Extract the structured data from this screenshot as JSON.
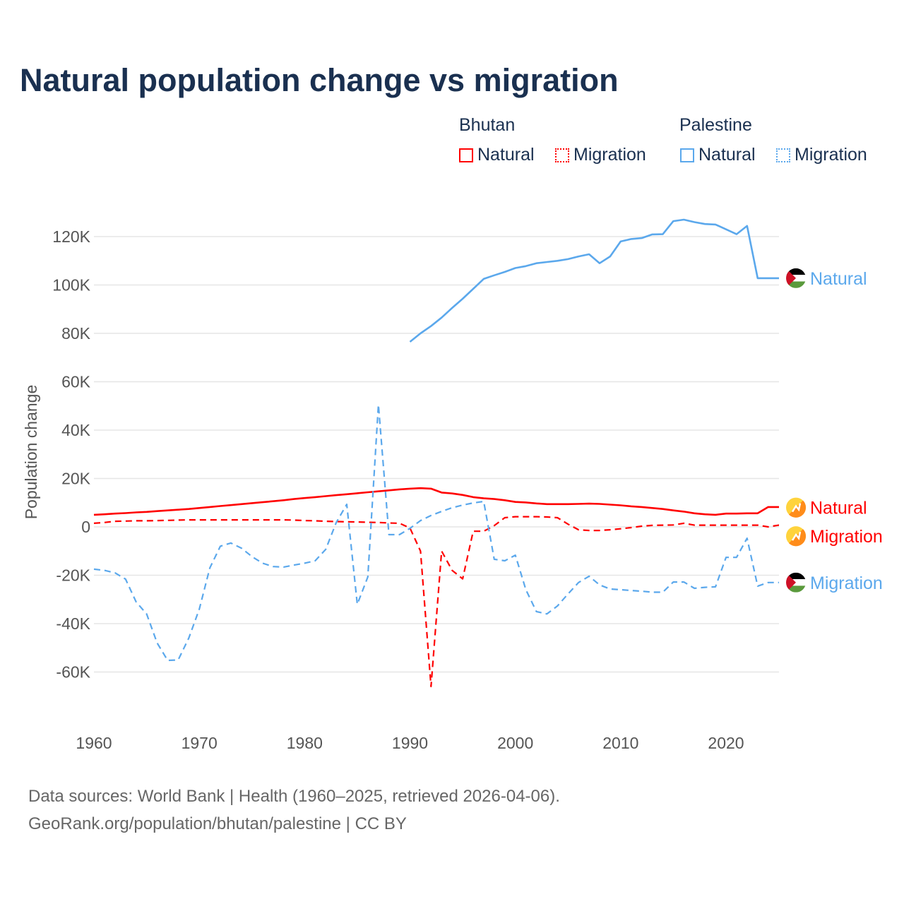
{
  "title": "Natural population change vs migration",
  "legend": {
    "groups": [
      {
        "country": "Bhutan",
        "items": [
          "Natural",
          "Migration"
        ],
        "color": "#ff0000"
      },
      {
        "country": "Palestine",
        "items": [
          "Natural",
          "Migration"
        ],
        "color": "#5ba8ec"
      }
    ]
  },
  "source": {
    "line1": "Data sources: World Bank | Health (1960–2025, retrieved 2026-04-06).",
    "line2": "GeoRank.org/population/bhutan/palestine | CC BY"
  },
  "chart_data": {
    "type": "line",
    "title": "Natural population change vs migration",
    "xlabel": "",
    "ylabel": "Population change",
    "xlim": [
      1960,
      2025
    ],
    "ylim": [
      -70,
      130
    ],
    "x_ticks": [
      "1960",
      "1970",
      "1980",
      "1990",
      "2000",
      "2010",
      "2020"
    ],
    "y_ticks": [
      {
        "v": 120,
        "label": "120K"
      },
      {
        "v": 100,
        "label": "100K"
      },
      {
        "v": 80,
        "label": "80K"
      },
      {
        "v": 60,
        "label": "60K"
      },
      {
        "v": 40,
        "label": "40K"
      },
      {
        "v": 20,
        "label": "20K"
      },
      {
        "v": 0,
        "label": "0"
      },
      {
        "v": -20,
        "label": "-20K"
      },
      {
        "v": -40,
        "label": "-40K"
      },
      {
        "v": -60,
        "label": "-60K"
      }
    ],
    "grid": true,
    "x_start": 1960,
    "units": "thousands",
    "series": [
      {
        "name": "Bhutan Natural",
        "label": "Natural",
        "color": "#ff0000",
        "dash": false,
        "values": [
          5,
          5.2,
          5.5,
          5.7,
          6,
          6.2,
          6.5,
          6.8,
          7.1,
          7.4,
          7.8,
          8.2,
          8.6,
          9,
          9.4,
          9.8,
          10.2,
          10.6,
          11,
          11.5,
          11.9,
          12.3,
          12.7,
          13.1,
          13.5,
          13.9,
          14.3,
          14.7,
          15.1,
          15.5,
          15.8,
          16,
          15.8,
          14.2,
          13.8,
          13.2,
          12.3,
          11.8,
          11.5,
          11,
          10.3,
          10.1,
          9.7,
          9.4,
          9.4,
          9.4,
          9.5,
          9.6,
          9.5,
          9.2,
          8.9,
          8.5,
          8.2,
          7.8,
          7.4,
          6.8,
          6.3,
          5.6,
          5.2,
          5,
          5.5,
          5.5,
          5.6,
          5.6,
          8.2,
          8.2
        ]
      },
      {
        "name": "Bhutan Migration",
        "label": "Migration",
        "color": "#ff0000",
        "dash": true,
        "values": [
          1.5,
          1.8,
          2.3,
          2.4,
          2.5,
          2.5,
          2.6,
          2.7,
          2.8,
          2.9,
          2.9,
          2.9,
          2.9,
          2.9,
          2.9,
          2.9,
          2.9,
          2.9,
          2.9,
          2.8,
          2.6,
          2.5,
          2.3,
          2.2,
          2.1,
          2,
          1.9,
          1.8,
          1.6,
          1.5,
          -0.5,
          -10,
          -66,
          -10,
          -18,
          -21.5,
          -1.8,
          -1.8,
          0.5,
          3.8,
          4.2,
          4.2,
          4.2,
          4.1,
          3.8,
          1.1,
          -1.2,
          -1.5,
          -1.5,
          -1.2,
          -0.8,
          -0.3,
          0.3,
          0.6,
          0.7,
          0.8,
          1.5,
          0.7,
          0.7,
          0.7,
          0.7,
          0.7,
          0.7,
          0.7,
          0,
          0.7
        ]
      },
      {
        "name": "Palestine Natural",
        "label": "Natural",
        "color": "#5ba8ec",
        "dash": false,
        "values": [
          null,
          null,
          null,
          null,
          null,
          null,
          null,
          null,
          null,
          null,
          null,
          null,
          null,
          null,
          null,
          null,
          null,
          null,
          null,
          null,
          null,
          null,
          null,
          null,
          null,
          null,
          null,
          null,
          null,
          null,
          76.5,
          80,
          83,
          86.5,
          90.5,
          94.3,
          98.4,
          102.5,
          104,
          105.4,
          107,
          107.8,
          109,
          109.5,
          110,
          110.7,
          111.8,
          112.7,
          109,
          111.8,
          118,
          119,
          119.4,
          120.9,
          121,
          126.4,
          127,
          126,
          125.2,
          125,
          123,
          121,
          124.4,
          102.8,
          102.8,
          102.8
        ]
      },
      {
        "name": "Palestine Migration",
        "label": "Migration",
        "color": "#5ba8ec",
        "dash": true,
        "values": [
          -17.5,
          -18,
          -19,
          -21.6,
          -31,
          -36,
          -48,
          -55.2,
          -55,
          -46,
          -34,
          -17,
          -8,
          -6.7,
          -8.8,
          -12.3,
          -15,
          -16.4,
          -16.6,
          -15.8,
          -15,
          -14,
          -9.3,
          1.8,
          9.3,
          -32,
          -20.7,
          50.5,
          -3.2,
          -3.2,
          -0.6,
          2.6,
          4.7,
          6.4,
          7.9,
          9,
          9.9,
          10.5,
          -13.4,
          -14,
          -11.7,
          -26,
          -35,
          -36,
          -32.7,
          -27.7,
          -23,
          -20.4,
          -24,
          -25.7,
          -26,
          -26.3,
          -26.6,
          -27,
          -27,
          -22.8,
          -22.8,
          -25.4,
          -25,
          -24.8,
          -12.6,
          -12.6,
          -4.7,
          -24.5,
          -23,
          -23
        ]
      }
    ]
  }
}
